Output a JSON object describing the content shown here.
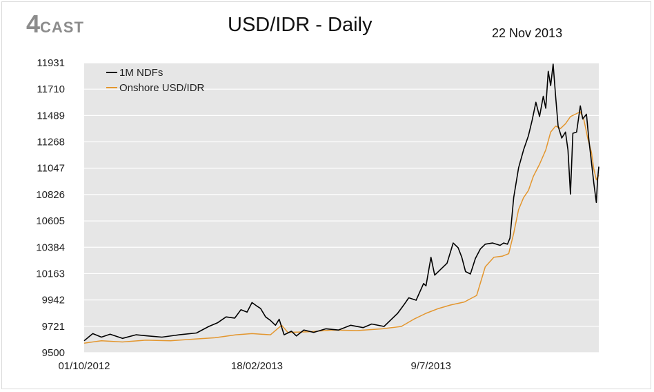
{
  "header": {
    "logo_number": "4",
    "logo_word": "CAST",
    "title": "USD/IDR - Daily",
    "date": "22 Nov 2013"
  },
  "colors": {
    "plot_background": "#e6e6e6",
    "gridline": "#ffffff",
    "ndf_line": "#000000",
    "onshore_line": "#e3962e",
    "logo": "#8c8c8c"
  },
  "chart_data": {
    "type": "line",
    "title": "USD/IDR - Daily",
    "xlabel": "",
    "ylabel": "",
    "grid": true,
    "legend_position": "top-left",
    "x_range": [
      "2012-10-01",
      "2013-11-22"
    ],
    "x_tick_labels": [
      {
        "date": "2012-10-01",
        "label": "01/10/2012"
      },
      {
        "date": "2013-02-18",
        "label": "18/02/2013"
      },
      {
        "date": "2013-07-09",
        "label": "9/7/2013"
      }
    ],
    "ylim": [
      9500,
      11931
    ],
    "y_ticks": [
      9500,
      9721,
      9942,
      10163,
      10384,
      10605,
      10826,
      11047,
      11268,
      11489,
      11710,
      11931
    ],
    "series": [
      {
        "name": "1M NDFs",
        "color": "#000000",
        "points": [
          [
            "2012-10-01",
            9600
          ],
          [
            "2012-10-08",
            9660
          ],
          [
            "2012-10-15",
            9630
          ],
          [
            "2012-10-22",
            9655
          ],
          [
            "2012-11-01",
            9620
          ],
          [
            "2012-11-12",
            9650
          ],
          [
            "2012-11-22",
            9640
          ],
          [
            "2012-12-03",
            9630
          ],
          [
            "2012-12-17",
            9650
          ],
          [
            "2012-12-31",
            9665
          ],
          [
            "2013-01-10",
            9720
          ],
          [
            "2013-01-17",
            9750
          ],
          [
            "2013-01-24",
            9800
          ],
          [
            "2013-01-31",
            9790
          ],
          [
            "2013-02-05",
            9860
          ],
          [
            "2013-02-10",
            9840
          ],
          [
            "2013-02-14",
            9920
          ],
          [
            "2013-02-18",
            9890
          ],
          [
            "2013-02-21",
            9870
          ],
          [
            "2013-02-25",
            9800
          ],
          [
            "2013-03-01",
            9770
          ],
          [
            "2013-03-05",
            9730
          ],
          [
            "2013-03-08",
            9780
          ],
          [
            "2013-03-12",
            9650
          ],
          [
            "2013-03-18",
            9680
          ],
          [
            "2013-03-22",
            9640
          ],
          [
            "2013-03-28",
            9690
          ],
          [
            "2013-04-05",
            9670
          ],
          [
            "2013-04-15",
            9700
          ],
          [
            "2013-04-25",
            9690
          ],
          [
            "2013-05-05",
            9730
          ],
          [
            "2013-05-15",
            9710
          ],
          [
            "2013-05-22",
            9740
          ],
          [
            "2013-06-01",
            9720
          ],
          [
            "2013-06-07",
            9780
          ],
          [
            "2013-06-12",
            9830
          ],
          [
            "2013-06-17",
            9900
          ],
          [
            "2013-06-21",
            9960
          ],
          [
            "2013-06-27",
            9940
          ],
          [
            "2013-07-03",
            10080
          ],
          [
            "2013-07-05",
            10060
          ],
          [
            "2013-07-09",
            10300
          ],
          [
            "2013-07-12",
            10150
          ],
          [
            "2013-07-17",
            10200
          ],
          [
            "2013-07-22",
            10250
          ],
          [
            "2013-07-27",
            10420
          ],
          [
            "2013-07-31",
            10380
          ],
          [
            "2013-08-03",
            10300
          ],
          [
            "2013-08-06",
            10180
          ],
          [
            "2013-08-10",
            10160
          ],
          [
            "2013-08-14",
            10290
          ],
          [
            "2013-08-18",
            10370
          ],
          [
            "2013-08-22",
            10410
          ],
          [
            "2013-08-28",
            10420
          ],
          [
            "2013-09-03",
            10400
          ],
          [
            "2013-09-06",
            10420
          ],
          [
            "2013-09-09",
            10410
          ],
          [
            "2013-09-11",
            10460
          ],
          [
            "2013-09-14",
            10800
          ],
          [
            "2013-09-18",
            11050
          ],
          [
            "2013-09-22",
            11200
          ],
          [
            "2013-09-26",
            11320
          ],
          [
            "2013-09-29",
            11450
          ],
          [
            "2013-10-02",
            11600
          ],
          [
            "2013-10-05",
            11480
          ],
          [
            "2013-10-08",
            11650
          ],
          [
            "2013-10-10",
            11550
          ],
          [
            "2013-10-12",
            11860
          ],
          [
            "2013-10-14",
            11740
          ],
          [
            "2013-10-16",
            11920
          ],
          [
            "2013-10-18",
            11650
          ],
          [
            "2013-10-20",
            11400
          ],
          [
            "2013-10-23",
            11300
          ],
          [
            "2013-10-26",
            11350
          ],
          [
            "2013-10-28",
            11200
          ],
          [
            "2013-10-30",
            10830
          ],
          [
            "2013-11-01",
            11340
          ],
          [
            "2013-11-04",
            11350
          ],
          [
            "2013-11-07",
            11570
          ],
          [
            "2013-11-09",
            11460
          ],
          [
            "2013-11-12",
            11500
          ],
          [
            "2013-11-14",
            11280
          ],
          [
            "2013-11-16",
            11100
          ],
          [
            "2013-11-18",
            10920
          ],
          [
            "2013-11-20",
            10760
          ],
          [
            "2013-11-21",
            10950
          ],
          [
            "2013-11-22",
            11060
          ]
        ]
      },
      {
        "name": "Onshore USD/IDR",
        "color": "#e3962e",
        "points": [
          [
            "2012-10-01",
            9580
          ],
          [
            "2012-10-15",
            9600
          ],
          [
            "2012-11-01",
            9590
          ],
          [
            "2012-11-20",
            9605
          ],
          [
            "2012-12-10",
            9600
          ],
          [
            "2012-12-31",
            9615
          ],
          [
            "2013-01-15",
            9625
          ],
          [
            "2013-02-01",
            9650
          ],
          [
            "2013-02-14",
            9660
          ],
          [
            "2013-03-01",
            9650
          ],
          [
            "2013-03-10",
            9730
          ],
          [
            "2013-03-15",
            9670
          ],
          [
            "2013-04-01",
            9675
          ],
          [
            "2013-04-20",
            9690
          ],
          [
            "2013-05-10",
            9685
          ],
          [
            "2013-05-31",
            9700
          ],
          [
            "2013-06-15",
            9720
          ],
          [
            "2013-06-25",
            9780
          ],
          [
            "2013-07-05",
            9830
          ],
          [
            "2013-07-15",
            9870
          ],
          [
            "2013-07-25",
            9900
          ],
          [
            "2013-08-05",
            9925
          ],
          [
            "2013-08-15",
            9980
          ],
          [
            "2013-08-22",
            10220
          ],
          [
            "2013-08-29",
            10300
          ],
          [
            "2013-09-05",
            10310
          ],
          [
            "2013-09-10",
            10330
          ],
          [
            "2013-09-14",
            10500
          ],
          [
            "2013-09-18",
            10700
          ],
          [
            "2013-09-22",
            10800
          ],
          [
            "2013-09-26",
            10860
          ],
          [
            "2013-09-30",
            10980
          ],
          [
            "2013-10-05",
            11080
          ],
          [
            "2013-10-10",
            11200
          ],
          [
            "2013-10-14",
            11350
          ],
          [
            "2013-10-18",
            11400
          ],
          [
            "2013-10-22",
            11380
          ],
          [
            "2013-10-26",
            11420
          ],
          [
            "2013-10-30",
            11480
          ],
          [
            "2013-11-03",
            11500
          ],
          [
            "2013-11-07",
            11520
          ],
          [
            "2013-11-10",
            11450
          ],
          [
            "2013-11-13",
            11300
          ],
          [
            "2013-11-16",
            11180
          ],
          [
            "2013-11-18",
            11040
          ],
          [
            "2013-11-20",
            10950
          ],
          [
            "2013-11-22",
            10990
          ]
        ]
      }
    ]
  }
}
